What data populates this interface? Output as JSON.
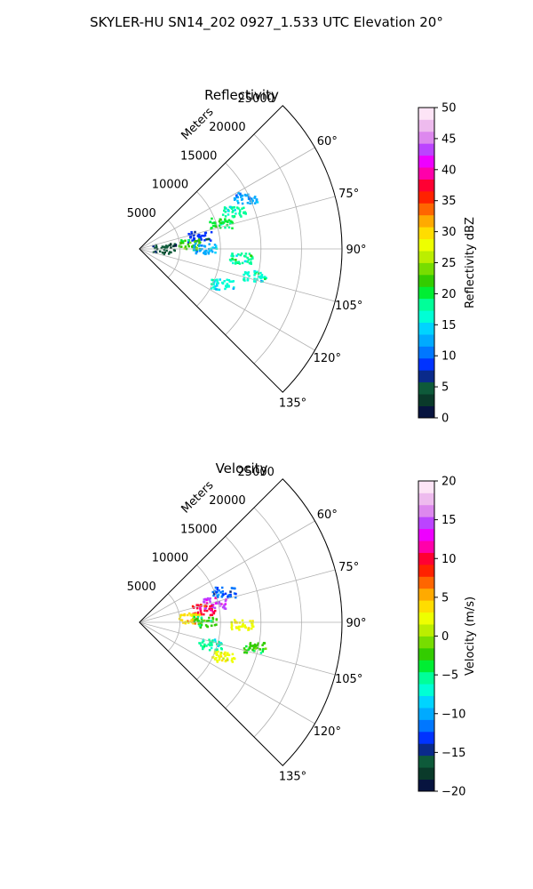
{
  "figure": {
    "suptitle": "SKYLER-HU  SN14_202  0927_1.533 UTC Elevation 20°"
  },
  "chart_data": [
    {
      "type": "heatmap",
      "subtype": "polar-sector",
      "title": "Reflectivity",
      "radial_label": "Meters",
      "radial_ticks": [
        5000,
        10000,
        15000,
        20000,
        25000
      ],
      "angular_ticks": [
        60,
        75,
        90,
        105,
        120,
        135
      ],
      "angular_tick_labels": [
        "60°",
        "75°",
        "90°",
        "105°",
        "120°",
        "135°"
      ],
      "theta_range_deg": [
        45,
        135
      ],
      "r_max": 25000,
      "grid": true,
      "colorbar": {
        "label": "Reflectivity dBZ",
        "range": [
          0,
          50
        ],
        "ticks": [
          0,
          5,
          10,
          15,
          20,
          25,
          30,
          35,
          40,
          45,
          50
        ],
        "tick_labels": [
          "0",
          "5",
          "10",
          "15",
          "20",
          "25",
          "30",
          "35",
          "40",
          "45",
          "50"
        ],
        "colors": [
          "#07143f",
          "#0a3a2a",
          "#0e5a3a",
          "#0a2a8a",
          "#0033ff",
          "#0077ff",
          "#00aaff",
          "#00d4ff",
          "#00ffd5",
          "#00ff99",
          "#00ee33",
          "#33cc00",
          "#77dd00",
          "#bbee00",
          "#eeff00",
          "#ffdd00",
          "#ffaa00",
          "#ff6600",
          "#ff2200",
          "#ff0033",
          "#ff00aa",
          "#ee00ff",
          "#bb44ff",
          "#dd88ee",
          "#eebbee",
          "#fde4f6"
        ]
      },
      "echoes": [
        {
          "range_m": 10500,
          "azimuth_deg": 72,
          "value": 20
        },
        {
          "range_m": 12500,
          "azimuth_deg": 68,
          "value": 18
        },
        {
          "range_m": 14500,
          "azimuth_deg": 64,
          "value": 12
        },
        {
          "range_m": 7500,
          "azimuth_deg": 78,
          "value": 8
        },
        {
          "range_m": 6000,
          "azimuth_deg": 84,
          "value": 22
        },
        {
          "range_m": 3000,
          "azimuth_deg": 88,
          "value": 4
        },
        {
          "range_m": 8000,
          "azimuth_deg": 89,
          "value": 12
        },
        {
          "range_m": 12500,
          "azimuth_deg": 95,
          "value": 18
        },
        {
          "range_m": 14500,
          "azimuth_deg": 103,
          "value": 16
        },
        {
          "range_m": 11000,
          "azimuth_deg": 113,
          "value": 16
        }
      ]
    },
    {
      "type": "heatmap",
      "subtype": "polar-sector",
      "title": "Velocity",
      "radial_label": "Meters",
      "radial_ticks": [
        5000,
        10000,
        15000,
        20000,
        25000
      ],
      "angular_ticks": [
        60,
        75,
        90,
        105,
        120,
        135
      ],
      "angular_tick_labels": [
        "60°",
        "75°",
        "90°",
        "105°",
        "120°",
        "135°"
      ],
      "theta_range_deg": [
        45,
        135
      ],
      "r_max": 25000,
      "grid": true,
      "colorbar": {
        "label": "Velocity (m/s)",
        "range": [
          -20,
          20
        ],
        "ticks": [
          -20,
          -15,
          -10,
          -5,
          0,
          5,
          10,
          15,
          20
        ],
        "tick_labels": [
          "−20",
          "−15",
          "−10",
          "−5",
          "0",
          "5",
          "10",
          "15",
          "20"
        ],
        "colors": [
          "#07143f",
          "#0a3a2a",
          "#0e5a3a",
          "#0a2a8a",
          "#0033ff",
          "#0077ff",
          "#00aaff",
          "#00d4ff",
          "#00ffd5",
          "#00ff99",
          "#00ee33",
          "#33cc00",
          "#77dd00",
          "#bbee00",
          "#eeff00",
          "#ffdd00",
          "#ffaa00",
          "#ff6600",
          "#ff2200",
          "#ff0033",
          "#ff00aa",
          "#ee00ff",
          "#bb44ff",
          "#dd88ee",
          "#eebbee",
          "#fde4f6"
        ]
      },
      "echoes": [
        {
          "range_m": 11000,
          "azimuth_deg": 70,
          "value": -12
        },
        {
          "range_m": 9500,
          "azimuth_deg": 75,
          "value": 14
        },
        {
          "range_m": 8000,
          "azimuth_deg": 78,
          "value": 10
        },
        {
          "range_m": 6000,
          "azimuth_deg": 84,
          "value": 4
        },
        {
          "range_m": 8000,
          "azimuth_deg": 89,
          "value": -3
        },
        {
          "range_m": 12500,
          "azimuth_deg": 91,
          "value": 3
        },
        {
          "range_m": 14500,
          "azimuth_deg": 102,
          "value": -3
        },
        {
          "range_m": 11000,
          "azimuth_deg": 112,
          "value": 3
        },
        {
          "range_m": 9000,
          "azimuth_deg": 107,
          "value": -6
        }
      ]
    }
  ]
}
